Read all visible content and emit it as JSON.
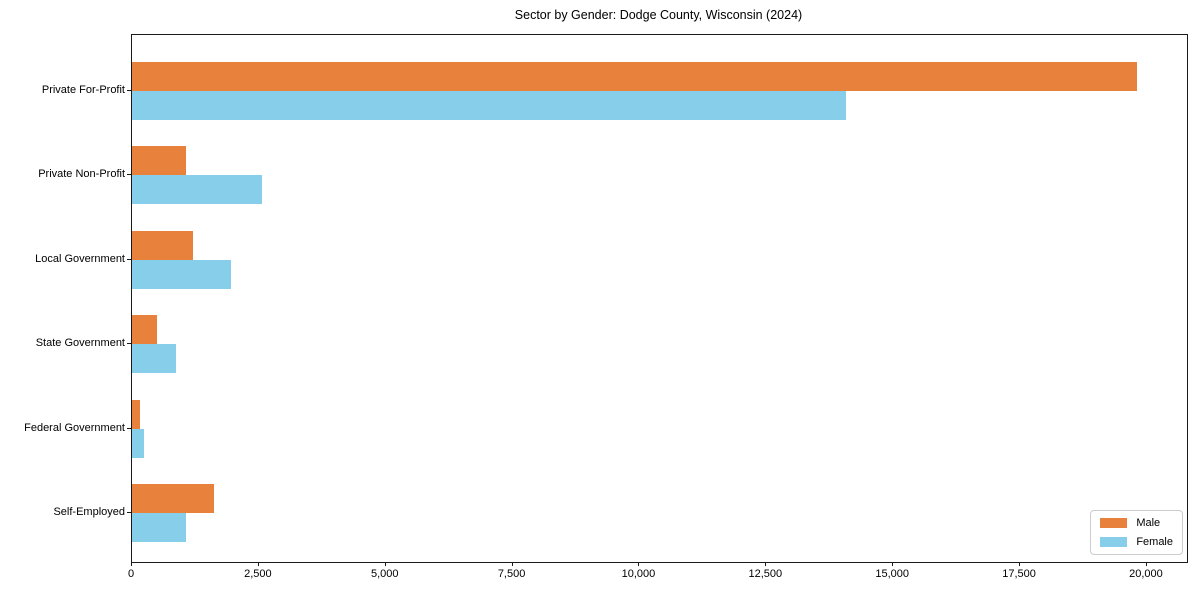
{
  "chart_data": {
    "type": "bar",
    "orientation": "horizontal",
    "title": "Sector by Gender: Dodge County, Wisconsin (2024)",
    "categories": [
      "Private For-Profit",
      "Private Non-Profit",
      "Local Government",
      "State Government",
      "Federal Government",
      "Self-Employed"
    ],
    "series": [
      {
        "name": "Male",
        "color": "#e8813c",
        "values": [
          19800,
          1070,
          1200,
          490,
          160,
          1620
        ]
      },
      {
        "name": "Female",
        "color": "#87ceeb",
        "values": [
          14070,
          2570,
          1950,
          870,
          230,
          1060
        ]
      }
    ],
    "xlabel": "",
    "ylabel": "",
    "xlim": [
      0,
      20790
    ],
    "x_ticks": [
      0,
      2500,
      5000,
      7500,
      10000,
      12500,
      15000,
      17500,
      20000
    ],
    "x_tick_labels": [
      "0",
      "2,500",
      "5,000",
      "7,500",
      "10,000",
      "12,500",
      "15,000",
      "17,500",
      "20,000"
    ],
    "grid": false,
    "legend_position": "lower right"
  }
}
